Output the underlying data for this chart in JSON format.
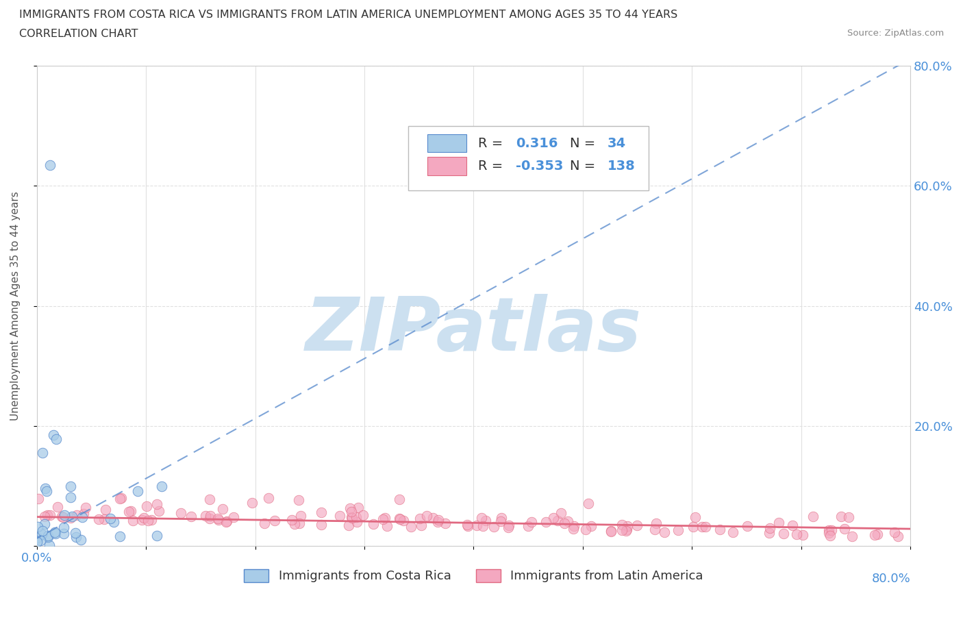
{
  "title_line1": "IMMIGRANTS FROM COSTA RICA VS IMMIGRANTS FROM LATIN AMERICA UNEMPLOYMENT AMONG AGES 35 TO 44 YEARS",
  "title_line2": "CORRELATION CHART",
  "source_text": "Source: ZipAtlas.com",
  "ylabel": "Unemployment Among Ages 35 to 44 years",
  "xlim": [
    0,
    0.8
  ],
  "ylim": [
    0,
    0.8
  ],
  "legend_R1": "0.316",
  "legend_N1": "34",
  "legend_R2": "-0.353",
  "legend_N2": "138",
  "series1_label": "Immigrants from Costa Rica",
  "series2_label": "Immigrants from Latin America",
  "color1": "#a8cce8",
  "color2": "#f4a8c0",
  "trendline1_color": "#5588cc",
  "trendline2_color": "#e06880",
  "watermark_text": "ZIPatlas",
  "watermark_color": "#cce0f0",
  "background_color": "#ffffff",
  "grid_color": "#e0e0e0",
  "title_color": "#333333",
  "axis_label_color": "#555555",
  "tick_label_color": "#4a90d9",
  "right_ytick_labels": [
    "80.0%",
    "60.0%",
    "40.0%",
    "20.0%"
  ],
  "right_ytick_pos": [
    0.8,
    0.6,
    0.4,
    0.2
  ],
  "bottom_xtick_labels_left": "0.0%",
  "bottom_xtick_labels_right": "80.0%"
}
